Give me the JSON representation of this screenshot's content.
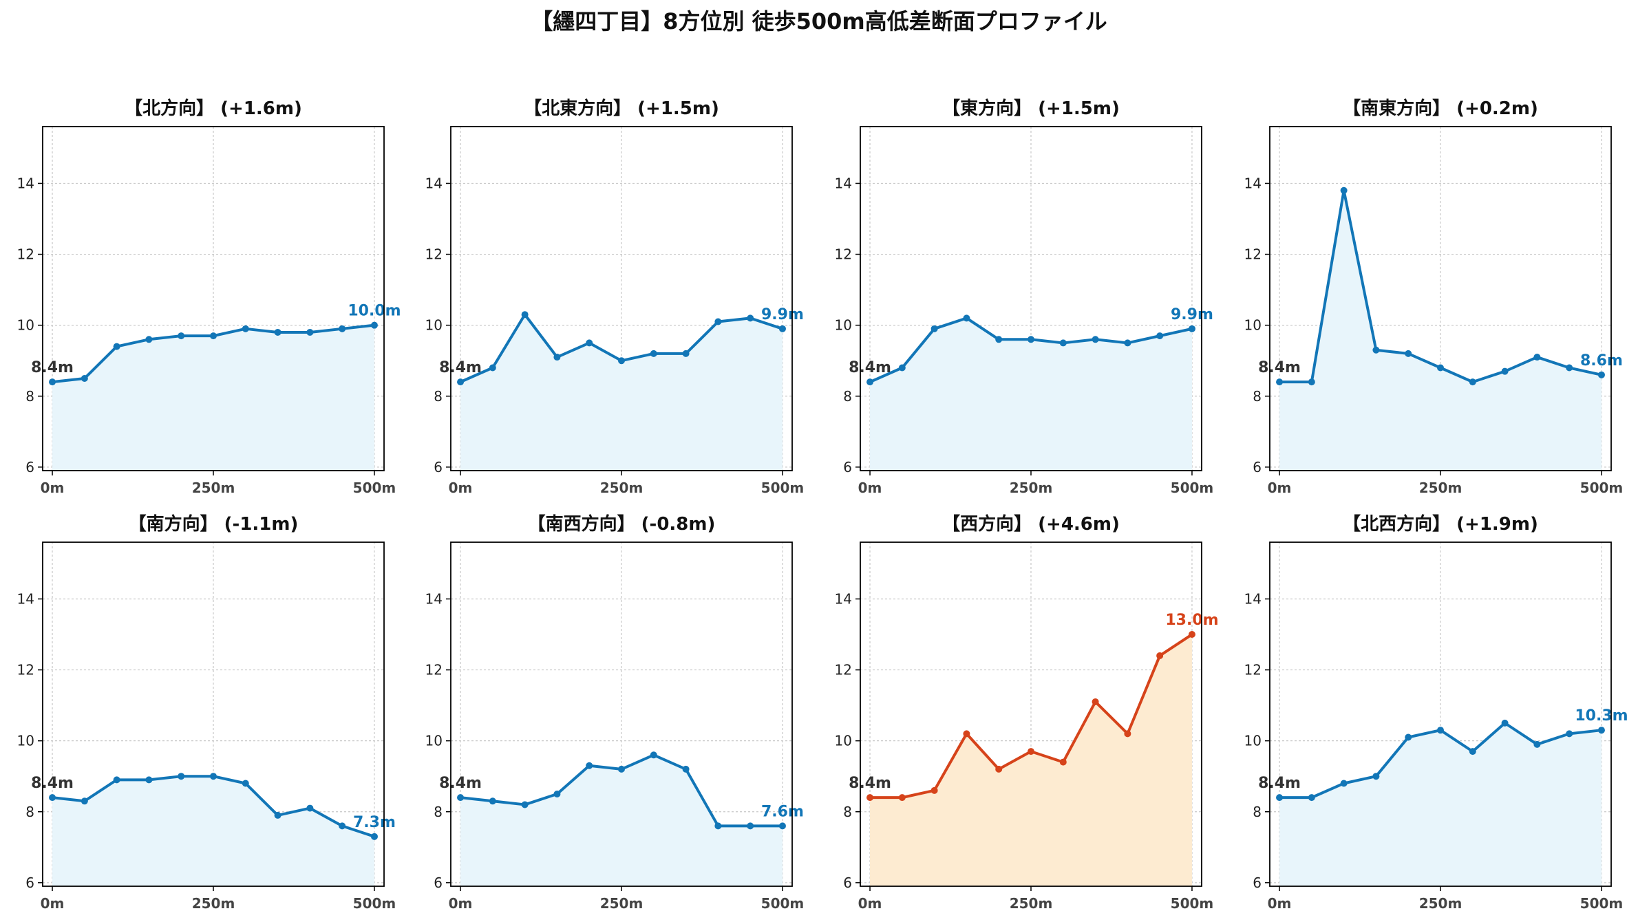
{
  "figure_title": "【纆四丁目】8方位別 徒歩500m高低差断面プロファイル",
  "colors": {
    "normal_line": "#1276b7",
    "normal_fill": "#e8f5fb",
    "highlight_line": "#d6431a",
    "highlight_fill": "#fdebd1",
    "start_label": "#333333",
    "grid": "#c8c8c8",
    "axis": "#000000"
  },
  "chart_data": [
    {
      "type": "area",
      "title": "【北方向】 (+1.6m)",
      "highlight": false,
      "x": [
        0,
        50,
        100,
        150,
        200,
        250,
        300,
        350,
        400,
        450,
        500
      ],
      "values": [
        8.4,
        8.5,
        9.4,
        9.6,
        9.7,
        9.7,
        9.9,
        9.8,
        9.8,
        9.9,
        10.0
      ],
      "start_label": "8.4m",
      "end_label": "10.0m",
      "xticks": [
        "0m",
        "250m",
        "500m"
      ],
      "yticks": [
        "6",
        "8",
        "10",
        "12",
        "14"
      ],
      "xlim": [
        -15,
        515
      ],
      "ylim": [
        5.9,
        15.6
      ],
      "grid": true
    },
    {
      "type": "area",
      "title": "【北東方向】 (+1.5m)",
      "highlight": false,
      "x": [
        0,
        50,
        100,
        150,
        200,
        250,
        300,
        350,
        400,
        450,
        500
      ],
      "values": [
        8.4,
        8.8,
        10.3,
        9.1,
        9.5,
        9.0,
        9.2,
        9.2,
        10.1,
        10.2,
        9.9
      ],
      "start_label": "8.4m",
      "end_label": "9.9m",
      "xticks": [
        "0m",
        "250m",
        "500m"
      ],
      "yticks": [
        "6",
        "8",
        "10",
        "12",
        "14"
      ],
      "xlim": [
        -15,
        515
      ],
      "ylim": [
        5.9,
        15.6
      ],
      "grid": true
    },
    {
      "type": "area",
      "title": "【東方向】 (+1.5m)",
      "highlight": false,
      "x": [
        0,
        50,
        100,
        150,
        200,
        250,
        300,
        350,
        400,
        450,
        500
      ],
      "values": [
        8.4,
        8.8,
        9.9,
        10.2,
        9.6,
        9.6,
        9.5,
        9.6,
        9.5,
        9.7,
        9.9
      ],
      "start_label": "8.4m",
      "end_label": "9.9m",
      "xticks": [
        "0m",
        "250m",
        "500m"
      ],
      "yticks": [
        "6",
        "8",
        "10",
        "12",
        "14"
      ],
      "xlim": [
        -15,
        515
      ],
      "ylim": [
        5.9,
        15.6
      ],
      "grid": true
    },
    {
      "type": "area",
      "title": "【南東方向】 (+0.2m)",
      "highlight": false,
      "x": [
        0,
        50,
        100,
        150,
        200,
        250,
        300,
        350,
        400,
        450,
        500
      ],
      "values": [
        8.4,
        8.4,
        13.8,
        9.3,
        9.2,
        8.8,
        8.4,
        8.7,
        9.1,
        8.8,
        8.6
      ],
      "start_label": "8.4m",
      "end_label": "8.6m",
      "xticks": [
        "0m",
        "250m",
        "500m"
      ],
      "yticks": [
        "6",
        "8",
        "10",
        "12",
        "14"
      ],
      "xlim": [
        -15,
        515
      ],
      "ylim": [
        5.9,
        15.6
      ],
      "grid": true
    },
    {
      "type": "area",
      "title": "【南方向】 (-1.1m)",
      "highlight": false,
      "x": [
        0,
        50,
        100,
        150,
        200,
        250,
        300,
        350,
        400,
        450,
        500
      ],
      "values": [
        8.4,
        8.3,
        8.9,
        8.9,
        9.0,
        9.0,
        8.8,
        7.9,
        8.1,
        7.6,
        7.3
      ],
      "start_label": "8.4m",
      "end_label": "7.3m",
      "xticks": [
        "0m",
        "250m",
        "500m"
      ],
      "yticks": [
        "6",
        "8",
        "10",
        "12",
        "14"
      ],
      "xlim": [
        -15,
        515
      ],
      "ylim": [
        5.9,
        15.6
      ],
      "grid": true
    },
    {
      "type": "area",
      "title": "【南西方向】 (-0.8m)",
      "highlight": false,
      "x": [
        0,
        50,
        100,
        150,
        200,
        250,
        300,
        350,
        400,
        450,
        500
      ],
      "values": [
        8.4,
        8.3,
        8.2,
        8.5,
        9.3,
        9.2,
        9.6,
        9.2,
        7.6,
        7.6,
        7.6
      ],
      "start_label": "8.4m",
      "end_label": "7.6m",
      "xticks": [
        "0m",
        "250m",
        "500m"
      ],
      "yticks": [
        "6",
        "8",
        "10",
        "12",
        "14"
      ],
      "xlim": [
        -15,
        515
      ],
      "ylim": [
        5.9,
        15.6
      ],
      "grid": true
    },
    {
      "type": "area",
      "title": "【西方向】 (+4.6m)",
      "highlight": true,
      "x": [
        0,
        50,
        100,
        150,
        200,
        250,
        300,
        350,
        400,
        450,
        500
      ],
      "values": [
        8.4,
        8.4,
        8.6,
        10.2,
        9.2,
        9.7,
        9.4,
        11.1,
        10.2,
        12.4,
        13.0
      ],
      "start_label": "8.4m",
      "end_label": "13.0m",
      "xticks": [
        "0m",
        "250m",
        "500m"
      ],
      "yticks": [
        "6",
        "8",
        "10",
        "12",
        "14"
      ],
      "xlim": [
        -15,
        515
      ],
      "ylim": [
        5.9,
        15.6
      ],
      "grid": true
    },
    {
      "type": "area",
      "title": "【北西方向】 (+1.9m)",
      "highlight": false,
      "x": [
        0,
        50,
        100,
        150,
        200,
        250,
        300,
        350,
        400,
        450,
        500
      ],
      "values": [
        8.4,
        8.4,
        8.8,
        9.0,
        10.1,
        10.3,
        9.7,
        10.5,
        9.9,
        10.2,
        10.3
      ],
      "start_label": "8.4m",
      "end_label": "10.3m",
      "xticks": [
        "0m",
        "250m",
        "500m"
      ],
      "yticks": [
        "6",
        "8",
        "10",
        "12",
        "14"
      ],
      "xlim": [
        -15,
        515
      ],
      "ylim": [
        5.9,
        15.6
      ],
      "grid": true
    }
  ]
}
